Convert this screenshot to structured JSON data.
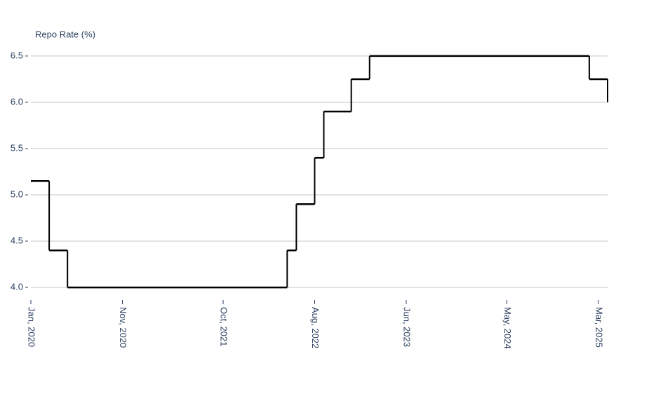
{
  "chart_data": {
    "type": "line",
    "line_shape": "hv",
    "y_label": "Repo Rate (%)",
    "x": [
      "2020-01",
      "2020-03",
      "2020-05",
      "2022-05",
      "2022-06",
      "2022-08",
      "2022-09",
      "2022-12",
      "2023-02",
      "2025-02",
      "2025-04"
    ],
    "values": [
      5.15,
      4.4,
      4.0,
      4.4,
      4.9,
      5.4,
      5.9,
      6.25,
      6.5,
      6.25,
      6.0
    ],
    "color": "#000000",
    "xlim": [
      "2020-01",
      "2025-04"
    ],
    "xticks": [
      {
        "value": "2020-01",
        "label": "Jan, 2020"
      },
      {
        "value": "2020-11",
        "label": "Nov, 2020"
      },
      {
        "value": "2021-10",
        "label": "Oct, 2021"
      },
      {
        "value": "2022-08",
        "label": "Aug, 2022"
      },
      {
        "value": "2023-06",
        "label": "Jun, 2023"
      },
      {
        "value": "2024-05",
        "label": "May, 2024"
      },
      {
        "value": "2025-03",
        "label": "Mar, 2025"
      }
    ],
    "ylim": [
      3.94,
      6.56
    ],
    "yticks": [
      {
        "value": 4,
        "label": "4.0"
      },
      4.5,
      {
        "value": 5,
        "label": "5.0"
      },
      5.5,
      {
        "value": 6,
        "label": "6.0"
      },
      6.5
    ],
    "grid": true
  }
}
